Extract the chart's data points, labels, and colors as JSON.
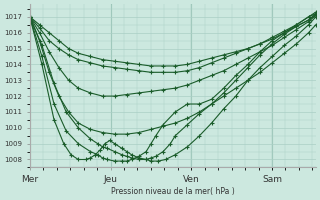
{
  "bg_color": "#cce8df",
  "grid_color": "#aacfc5",
  "line_color": "#1a5c2a",
  "ylabel": "Pression niveau de la mer( hPa )",
  "ylim": [
    1007.5,
    1017.8
  ],
  "yticks": [
    1008,
    1009,
    1010,
    1011,
    1012,
    1013,
    1014,
    1015,
    1016,
    1017
  ],
  "xtick_labels": [
    "Mer",
    "Jeu",
    "Ven",
    "Sam"
  ],
  "xtick_positions": [
    0,
    0.333,
    0.667,
    1.0
  ],
  "xlim": [
    0,
    1.18
  ],
  "series": [
    {
      "x": [
        0.0,
        0.04,
        0.08,
        0.12,
        0.16,
        0.2,
        0.25,
        0.3,
        0.35,
        0.4,
        0.45,
        0.5,
        0.55,
        0.6,
        0.65,
        0.7,
        0.75,
        0.8,
        0.85,
        0.9,
        0.95,
        1.0,
        1.05,
        1.1,
        1.15,
        1.18
      ],
      "y": [
        1017.0,
        1016.5,
        1016.0,
        1015.5,
        1015.0,
        1014.7,
        1014.5,
        1014.3,
        1014.2,
        1014.1,
        1014.0,
        1013.9,
        1013.9,
        1013.9,
        1014.0,
        1014.2,
        1014.4,
        1014.6,
        1014.8,
        1015.0,
        1015.3,
        1015.6,
        1016.0,
        1016.5,
        1017.0,
        1017.3
      ]
    },
    {
      "x": [
        0.0,
        0.04,
        0.08,
        0.12,
        0.16,
        0.2,
        0.25,
        0.3,
        0.35,
        0.4,
        0.45,
        0.5,
        0.55,
        0.6,
        0.65,
        0.7,
        0.75,
        0.8,
        0.85,
        0.9,
        0.95,
        1.0,
        1.05,
        1.1,
        1.15,
        1.18
      ],
      "y": [
        1017.0,
        1016.3,
        1015.5,
        1015.0,
        1014.6,
        1014.3,
        1014.1,
        1013.9,
        1013.8,
        1013.7,
        1013.6,
        1013.5,
        1013.5,
        1013.5,
        1013.6,
        1013.8,
        1014.1,
        1014.4,
        1014.7,
        1015.0,
        1015.3,
        1015.7,
        1016.1,
        1016.5,
        1017.0,
        1017.2
      ]
    },
    {
      "x": [
        0.0,
        0.04,
        0.08,
        0.12,
        0.16,
        0.2,
        0.25,
        0.3,
        0.35,
        0.4,
        0.45,
        0.5,
        0.55,
        0.6,
        0.65,
        0.7,
        0.75,
        0.8,
        0.85,
        0.9,
        0.95,
        1.0,
        1.05,
        1.1,
        1.15,
        1.18
      ],
      "y": [
        1017.0,
        1016.0,
        1014.8,
        1013.8,
        1013.0,
        1012.5,
        1012.2,
        1012.0,
        1012.0,
        1012.1,
        1012.2,
        1012.3,
        1012.4,
        1012.5,
        1012.7,
        1013.0,
        1013.3,
        1013.6,
        1014.0,
        1014.4,
        1014.8,
        1015.2,
        1015.7,
        1016.2,
        1016.7,
        1017.1
      ]
    },
    {
      "x": [
        0.0,
        0.04,
        0.08,
        0.12,
        0.16,
        0.2,
        0.25,
        0.3,
        0.35,
        0.4,
        0.45,
        0.5,
        0.55,
        0.6,
        0.65,
        0.7,
        0.75,
        0.8,
        0.85,
        0.9,
        0.95,
        1.0,
        1.05,
        1.1,
        1.15,
        1.18
      ],
      "y": [
        1017.0,
        1015.5,
        1013.5,
        1012.0,
        1011.0,
        1010.3,
        1009.9,
        1009.7,
        1009.6,
        1009.6,
        1009.7,
        1009.9,
        1010.1,
        1010.3,
        1010.6,
        1011.0,
        1011.5,
        1012.0,
        1012.5,
        1013.0,
        1013.5,
        1014.1,
        1014.7,
        1015.3,
        1016.0,
        1016.5
      ]
    },
    {
      "x": [
        0.0,
        0.05,
        0.1,
        0.15,
        0.2,
        0.25,
        0.28,
        0.3,
        0.32,
        0.35,
        0.38,
        0.4,
        0.42,
        0.45,
        0.48,
        0.5,
        0.52,
        0.55,
        0.58,
        0.6,
        0.65,
        0.7,
        0.75,
        0.8,
        0.85,
        0.9,
        0.95,
        1.0,
        1.05,
        1.1,
        1.15,
        1.18
      ],
      "y": [
        1017.0,
        1015.2,
        1012.8,
        1011.0,
        1010.0,
        1009.3,
        1009.0,
        1008.8,
        1008.7,
        1008.5,
        1008.3,
        1008.2,
        1008.1,
        1008.0,
        1008.0,
        1008.1,
        1008.2,
        1008.5,
        1009.0,
        1009.5,
        1010.2,
        1010.9,
        1011.5,
        1012.2,
        1013.0,
        1013.8,
        1014.6,
        1015.3,
        1015.9,
        1016.4,
        1016.8,
        1017.2
      ]
    },
    {
      "x": [
        0.0,
        0.05,
        0.1,
        0.15,
        0.2,
        0.25,
        0.28,
        0.3,
        0.32,
        0.35,
        0.38,
        0.4,
        0.42,
        0.45,
        0.48,
        0.5,
        0.52,
        0.55,
        0.6,
        0.65,
        0.7,
        0.75,
        0.8,
        0.85,
        0.9,
        0.95,
        1.0,
        1.05,
        1.1,
        1.15,
        1.18
      ],
      "y": [
        1017.0,
        1014.5,
        1011.5,
        1009.8,
        1009.0,
        1008.5,
        1008.3,
        1008.1,
        1008.0,
        1007.9,
        1007.9,
        1007.9,
        1008.0,
        1008.2,
        1008.5,
        1009.0,
        1009.5,
        1010.2,
        1011.0,
        1011.5,
        1011.5,
        1011.8,
        1012.5,
        1013.3,
        1014.0,
        1014.8,
        1015.5,
        1016.0,
        1016.4,
        1016.8,
        1017.1
      ]
    },
    {
      "x": [
        0.0,
        0.05,
        0.1,
        0.14,
        0.17,
        0.2,
        0.23,
        0.25,
        0.27,
        0.29,
        0.31,
        0.33,
        0.35,
        0.38,
        0.4,
        0.42,
        0.45,
        0.48,
        0.5,
        0.53,
        0.56,
        0.6,
        0.65,
        0.7,
        0.75,
        0.8,
        0.85,
        0.9,
        0.95,
        1.0,
        1.05,
        1.1,
        1.15,
        1.18
      ],
      "y": [
        1017.0,
        1014.0,
        1010.5,
        1009.0,
        1008.3,
        1008.0,
        1008.0,
        1008.1,
        1008.3,
        1008.6,
        1009.0,
        1009.2,
        1009.0,
        1008.7,
        1008.5,
        1008.3,
        1008.1,
        1008.0,
        1007.9,
        1007.9,
        1008.0,
        1008.3,
        1008.8,
        1009.5,
        1010.3,
        1011.2,
        1012.0,
        1013.0,
        1013.8,
        1014.5,
        1015.2,
        1015.8,
        1016.5,
        1017.0
      ]
    }
  ]
}
